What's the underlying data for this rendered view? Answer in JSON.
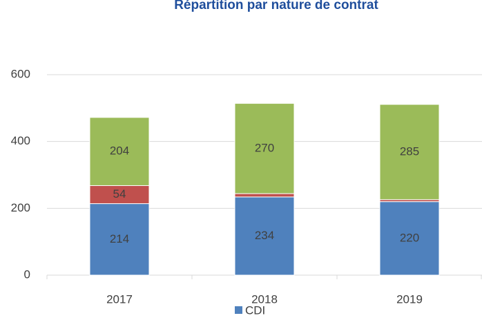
{
  "chart_data": {
    "type": "bar",
    "stacked": true,
    "title": "Répartition par nature de contrat",
    "categories": [
      "2017",
      "2018",
      "2019"
    ],
    "series": [
      {
        "name": "CDI",
        "color": "#4f81bd",
        "values": [
          214,
          234,
          220
        ]
      },
      {
        "color": "#c0504d",
        "values": [
          54,
          10,
          6
        ]
      },
      {
        "color": "#9bbb59",
        "values": [
          204,
          270,
          285
        ]
      }
    ],
    "ylim": [
      0,
      600
    ],
    "yticks": [
      0,
      200,
      400,
      600
    ],
    "grid": true,
    "legend": "bottom"
  }
}
